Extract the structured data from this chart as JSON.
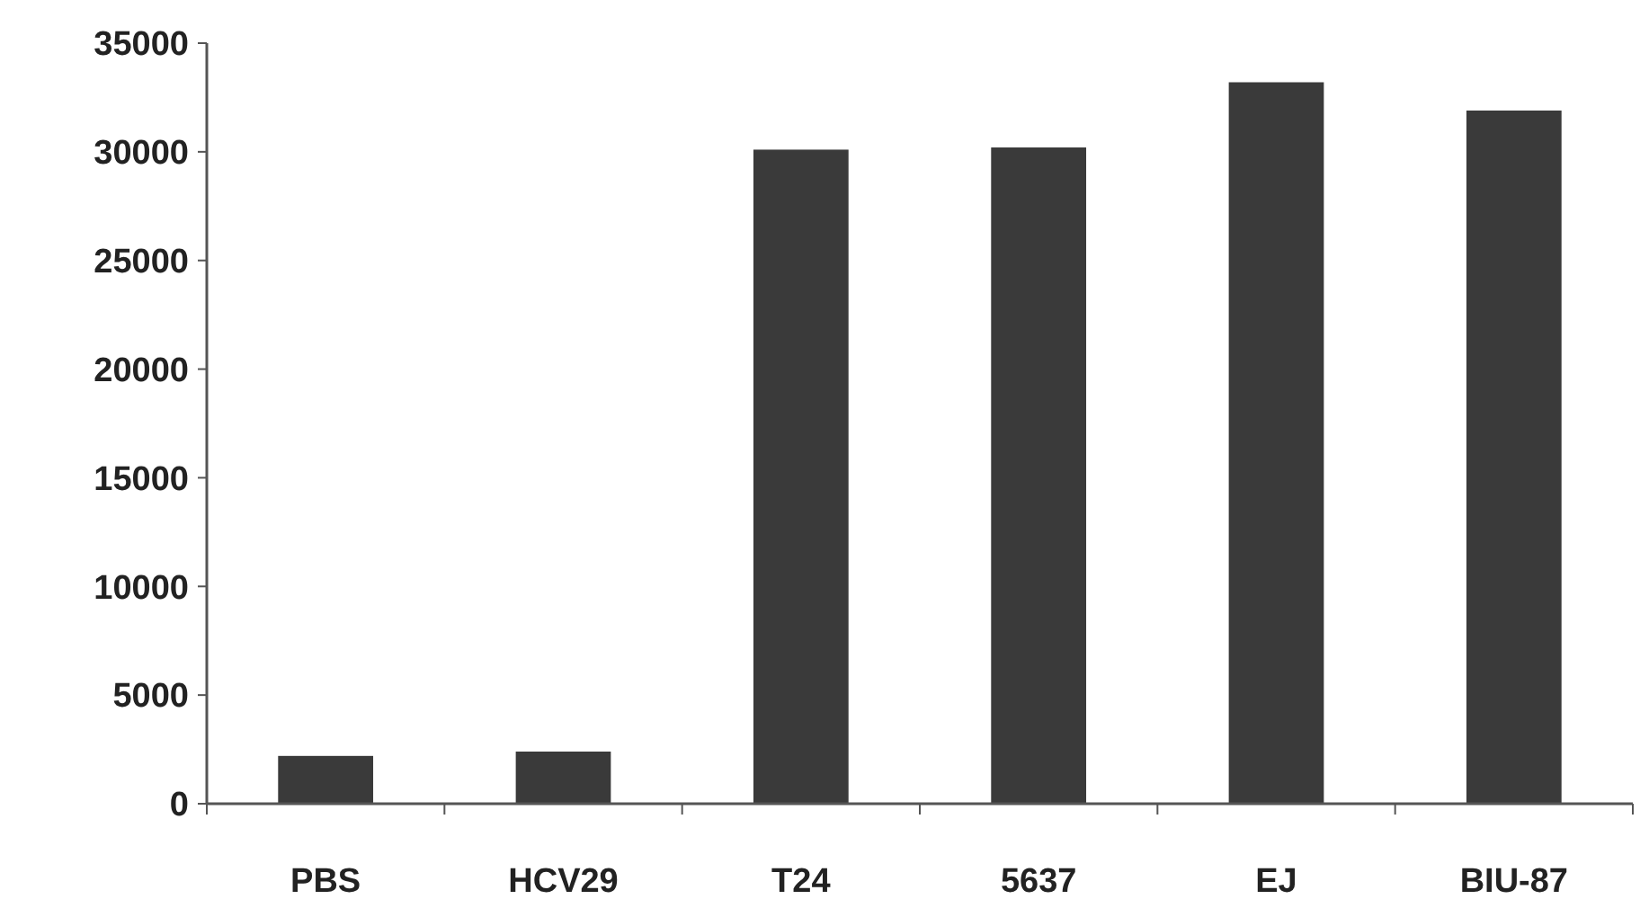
{
  "chart_data": {
    "type": "bar",
    "categories": [
      "PBS",
      "HCV29",
      "T24",
      "5637",
      "EJ",
      "BIU-87"
    ],
    "values": [
      2200,
      2400,
      30100,
      30200,
      33200,
      31900
    ],
    "color": "#3a3a3a",
    "ylim": [
      0,
      35000
    ],
    "yticks": [
      0,
      5000,
      10000,
      15000,
      20000,
      25000,
      30000,
      35000
    ],
    "grid": false
  }
}
